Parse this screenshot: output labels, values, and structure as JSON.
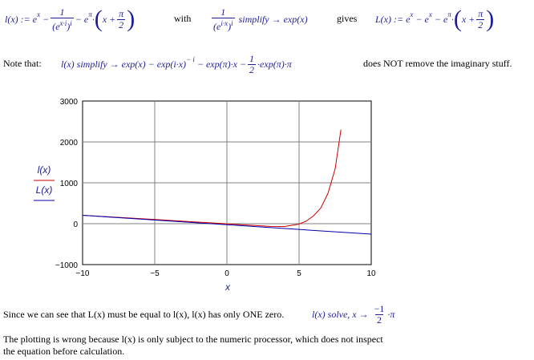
{
  "row1": {
    "def_lhs": "l(x) :=",
    "def_e": "e",
    "def_x": "x",
    "minus1": "−",
    "one": "1",
    "den_e": "e",
    "den_xi": "x·i",
    "den_i": "i",
    "minus2": "−",
    "e_pi": "e",
    "pi_sup": "π",
    "x_plus": "x +",
    "pi": "π",
    "two": "2",
    "with": "with",
    "one_b": "1",
    "den_e2": "e",
    "den_ix": "i·x",
    "den_i2": "i",
    "simplify": "simplify",
    "arrow": "→",
    "expx": "exp(x)",
    "gives": "gives",
    "L_def": "L(x) :=",
    "L_e1": "e",
    "L_x1": "x",
    "L_minus1": "−",
    "L_e2": "e",
    "L_x2": "x",
    "L_minus2": "−",
    "L_e3": "e",
    "L_pi": "π",
    "L_xplus": "x +",
    "L_pi2": "π",
    "L_two": "2"
  },
  "row2": {
    "note": "Note that:",
    "expr1": "l(x) simplify",
    "arrow": "→",
    "expr2": "exp(x) − exp(i·x)",
    "neg_i": "− i",
    "expr3": "− exp(π)·x −",
    "one": "1",
    "two": "2",
    "expr4": "·exp(π)·π",
    "comment": "does NOT remove the imaginary stuff."
  },
  "chart_data": {
    "type": "line",
    "xlim": [
      -10,
      10
    ],
    "ylim": [
      -1000,
      3000
    ],
    "xticks": [
      "−10",
      "−5",
      "0",
      "5",
      "10"
    ],
    "yticks": [
      "3000",
      "2000",
      "1000",
      "0",
      "−1000"
    ],
    "xlabel": "x",
    "ylabel_top": "l(x)",
    "ylabel_bottom": "L(x)",
    "grid": true,
    "series": [
      {
        "color": "#cc0000",
        "x": [
          -10,
          -5,
          0,
          3,
          4,
          5,
          5.5,
          6,
          6.5,
          7,
          7.5,
          7.9
        ],
        "y": [
          206,
          104,
          -3,
          -67,
          -69,
          -9,
          64,
          191,
          380,
          740,
          1340,
          2300
        ]
      },
      {
        "color": "#0000aa",
        "x": [
          -10,
          10
        ],
        "y": [
          206,
          -256
        ]
      }
    ]
  },
  "row4": {
    "text": "Since we can see that L(x) must be equal to l(x), l(x) has only ONE zero.",
    "expr": "l(x) solve, x",
    "arrow": "→",
    "num": "−1",
    "den": "2",
    "pi": "·π"
  },
  "row5": {
    "line1": "The plotting is wrong because l(x) is only subject to the numeric processor, which does not inspect",
    "line2": "the equation before calculation."
  }
}
